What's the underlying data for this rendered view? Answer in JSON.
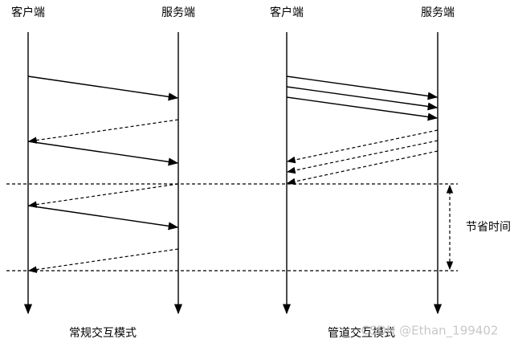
{
  "left": {
    "client": "客户端",
    "server": "服务端",
    "caption": "常规交互模式"
  },
  "right": {
    "client": "客户端",
    "server": "服务端",
    "caption": "管道交互模式"
  },
  "saved_time": "节省时间",
  "watermark": "CSDN @Ethan_199402"
}
